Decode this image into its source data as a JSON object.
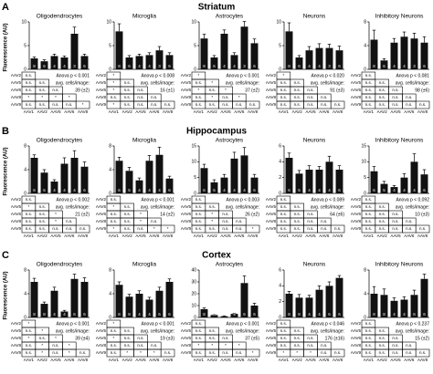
{
  "sections": [
    {
      "letter": "A",
      "title": "Striatum",
      "ylabel": "Fluorescence (AU)"
    },
    {
      "letter": "B",
      "title": "Hippocampus",
      "ylabel": "Fluorescence (AU)"
    },
    {
      "letter": "C",
      "title": "Cortex",
      "ylabel": "Fluorescence (AU)"
    }
  ],
  "chart_data": [
    {
      "type": "bar",
      "title": "Oligodendrocytes",
      "values": [
        2.3,
        1.7,
        2.8,
        2.5,
        7.5,
        2.8
      ],
      "errors": [
        0.3,
        0.3,
        0.4,
        0.3,
        1.4,
        0.4
      ],
      "n": [
        8,
        6,
        4,
        4,
        3,
        6
      ],
      "ylim": [
        0,
        10
      ],
      "yticks": [
        0,
        5,
        10
      ],
      "color": "#111111",
      "sig_rows": [
        "AAV2",
        "AAV5",
        "AAV6",
        "AAV8",
        "AAV9"
      ],
      "sig_cols": [
        "AAV1",
        "AAV2",
        "AAV5",
        "AAV6",
        "AAV8"
      ],
      "sig": [
        [
          "n.s."
        ],
        [
          "n.s.",
          "n.s."
        ],
        [
          "n.s.",
          "n.s.",
          "n.s."
        ],
        [
          "*",
          "*",
          "*",
          "*"
        ],
        [
          "n.s.",
          "n.s.",
          "n.s.",
          "n.s.",
          "*"
        ]
      ],
      "stats": [
        "Anova p < 0.001",
        "avg. cells/image:",
        "39 (±2)"
      ]
    },
    {
      "type": "bar",
      "title": "Microglia",
      "values": [
        8,
        2.5,
        2.8,
        3,
        4,
        3
      ],
      "errors": [
        1.6,
        0.4,
        0.4,
        0.5,
        0.8,
        0.5
      ],
      "n": [
        8,
        6,
        4,
        4,
        3,
        6
      ],
      "ylim": [
        0,
        10
      ],
      "yticks": [
        0,
        5,
        10
      ],
      "color": "#111111",
      "sig_rows": [
        "AAV2",
        "AAV5",
        "AAV6",
        "AAV8",
        "AAV9"
      ],
      "sig_cols": [
        "AAV1",
        "AAV2",
        "AAV5",
        "AAV6",
        "AAV8"
      ],
      "sig": [
        [
          "*"
        ],
        [
          "*",
          "n.s."
        ],
        [
          "*",
          "n.s.",
          "n.s."
        ],
        [
          "n.s.",
          "n.s.",
          "n.s.",
          "n.s."
        ],
        [
          "*",
          "n.s.",
          "n.s.",
          "n.s.",
          "n.s."
        ]
      ],
      "stats": [
        "Anova p < 0.008",
        "avg. cells/image:",
        "16 (±1)"
      ]
    },
    {
      "type": "bar",
      "title": "Astrocytes",
      "values": [
        6.5,
        2.5,
        7.5,
        3,
        9,
        5.5
      ],
      "errors": [
        0.9,
        0.4,
        0.8,
        0.5,
        1.1,
        0.9
      ],
      "n": [
        8,
        6,
        4,
        4,
        3,
        6
      ],
      "ylim": [
        0,
        10
      ],
      "yticks": [
        0,
        5,
        10
      ],
      "color": "#111111",
      "sig_rows": [
        "AAV2",
        "AAV5",
        "AAV6",
        "AAV8",
        "AAV9"
      ],
      "sig_cols": [
        "AAV1",
        "AAV2",
        "AAV5",
        "AAV6",
        "AAV8"
      ],
      "sig": [
        [
          "*"
        ],
        [
          "n.s.",
          "*"
        ],
        [
          "*",
          "n.s.",
          "*"
        ],
        [
          "n.s.",
          "*",
          "n.s.",
          "*"
        ],
        [
          "n.s.",
          "n.s.",
          "n.s.",
          "n.s.",
          "n.s."
        ]
      ],
      "stats": [
        "Anova p < 0.001",
        "avg. cells/image:",
        "37 (±2)"
      ]
    },
    {
      "type": "bar",
      "title": "Neurons",
      "values": [
        8,
        2.5,
        4,
        4.5,
        4.5,
        4
      ],
      "errors": [
        1.8,
        0.4,
        0.8,
        0.9,
        0.8,
        0.9
      ],
      "n": [
        8,
        6,
        4,
        4,
        3,
        6
      ],
      "ylim": [
        0,
        10
      ],
      "yticks": [
        0,
        5,
        10
      ],
      "color": "#111111",
      "sig_rows": [
        "AAV2",
        "AAV5",
        "AAV6",
        "AAV8",
        "AAV9"
      ],
      "sig_cols": [
        "AAV1",
        "AAV2",
        "AAV5",
        "AAV6",
        "AAV8"
      ],
      "sig": [
        [
          "*"
        ],
        [
          "n.s.",
          "n.s."
        ],
        [
          "n.s.",
          "n.s.",
          "n.s."
        ],
        [
          "n.s.",
          "n.s.",
          "n.s.",
          "n.s."
        ],
        [
          "n.s.",
          "n.s.",
          "n.s.",
          "n.s.",
          "n.s."
        ]
      ],
      "stats": [
        "Anova p < 0.020",
        "avg. cells/image:",
        "91 (±3)"
      ]
    },
    {
      "type": "bar",
      "title": "Inhibitory Neurons",
      "values": [
        5,
        1.5,
        4.5,
        5.5,
        5.2,
        4.5
      ],
      "errors": [
        1.6,
        0.3,
        0.7,
        0.8,
        0.9,
        1
      ],
      "n": [
        8,
        6,
        4,
        4,
        3,
        6
      ],
      "ylim": [
        0,
        8
      ],
      "yticks": [
        0,
        4,
        8
      ],
      "color": "#111111",
      "sig_rows": [
        "AAV2",
        "AAV5",
        "AAV6",
        "AAV8",
        "AAV9"
      ],
      "sig_cols": [
        "AAV1",
        "AAV2",
        "AAV5",
        "AAV6",
        "AAV8"
      ],
      "sig": [
        [
          "n.s."
        ],
        [
          "n.s.",
          "n.s."
        ],
        [
          "n.s.",
          "n.s.",
          "n.s."
        ],
        [
          "n.s.",
          "n.s.",
          "n.s.",
          "n.s."
        ],
        [
          "n.s.",
          "n.s.",
          "n.s.",
          "n.s.",
          "n.s."
        ]
      ],
      "stats": [
        "Anova p < 0.081",
        "avg. cells/image:",
        "98 (±6)"
      ]
    },
    {
      "type": "bar",
      "title": "Oligodendrocytes",
      "values": [
        6,
        3.5,
        2,
        5,
        6,
        4.5
      ],
      "errors": [
        0.5,
        0.5,
        0.3,
        1,
        1.2,
        0.8
      ],
      "n": [
        6,
        5,
        4,
        4,
        4,
        6
      ],
      "ylim": [
        0,
        8
      ],
      "yticks": [
        0,
        4,
        8
      ],
      "color": "#111111",
      "sig_rows": [
        "AAV2",
        "AAV5",
        "AAV6",
        "AAV8",
        "AAV9"
      ],
      "sig_cols": [
        "AAV1",
        "AAV2",
        "AAV5",
        "AAV6",
        "AAV8"
      ],
      "sig": [
        [
          "n.s."
        ],
        [
          "*",
          "n.s."
        ],
        [
          "n.s.",
          "n.s.",
          "*"
        ],
        [
          "n.s.",
          "n.s.",
          "*",
          "n.s."
        ],
        [
          "n.s.",
          "n.s.",
          "n.s.",
          "n.s.",
          "n.s."
        ]
      ],
      "stats": [
        "Anova p < 0.002",
        "avg. cells/image:",
        "21 (±2)"
      ]
    },
    {
      "type": "bar",
      "title": "Microglia",
      "values": [
        5.5,
        3.8,
        2.2,
        5.5,
        6.5,
        2.5
      ],
      "errors": [
        0.6,
        0.6,
        0.4,
        0.9,
        1.3,
        0.4
      ],
      "n": [
        6,
        5,
        4,
        4,
        4,
        6
      ],
      "ylim": [
        0,
        8
      ],
      "yticks": [
        0,
        4,
        8
      ],
      "color": "#111111",
      "sig_rows": [
        "AAV2",
        "AAV5",
        "AAV6",
        "AAV8",
        "AAV9"
      ],
      "sig_cols": [
        "AAV1",
        "AAV2",
        "AAV5",
        "AAV6",
        "AAV8"
      ],
      "sig": [
        [
          "n.s."
        ],
        [
          "*",
          "n.s."
        ],
        [
          "n.s.",
          "n.s.",
          "*"
        ],
        [
          "n.s.",
          "n.s.",
          "*",
          "n.s."
        ],
        [
          "*",
          "n.s.",
          "n.s.",
          "*",
          "*"
        ]
      ],
      "stats": [
        "Anova p < 0.001",
        "avg. cells/image:",
        "14 (±2)"
      ]
    },
    {
      "type": "bar",
      "title": "Astrocytes",
      "values": [
        8,
        3.5,
        5,
        11,
        12,
        5
      ],
      "errors": [
        1.2,
        0.8,
        1,
        2,
        2.5,
        1
      ],
      "n": [
        6,
        5,
        4,
        4,
        4,
        6
      ],
      "ylim": [
        0,
        15
      ],
      "yticks": [
        0,
        5,
        10,
        15
      ],
      "color": "#111111",
      "sig_rows": [
        "AAV2",
        "AAV5",
        "AAV6",
        "AAV8",
        "AAV9"
      ],
      "sig_cols": [
        "AAV1",
        "AAV2",
        "AAV5",
        "AAV6",
        "AAV8"
      ],
      "sig": [
        [
          "n.s."
        ],
        [
          "n.s.",
          "n.s."
        ],
        [
          "n.s.",
          "*",
          "n.s."
        ],
        [
          "n.s.",
          "*",
          "n.s.",
          "n.s."
        ],
        [
          "n.s.",
          "n.s.",
          "n.s.",
          "n.s.",
          "*"
        ]
      ],
      "stats": [
        "Anova p < 0.003",
        "avg. cells/image:",
        "26 (±2)"
      ]
    },
    {
      "type": "bar",
      "title": "Neurons",
      "values": [
        4.5,
        2.5,
        3,
        3,
        4,
        3
      ],
      "errors": [
        0.6,
        0.4,
        0.5,
        0.4,
        0.7,
        0.5
      ],
      "n": [
        6,
        5,
        4,
        4,
        4,
        6
      ],
      "ylim": [
        0,
        6
      ],
      "yticks": [
        0,
        2,
        4,
        6
      ],
      "color": "#111111",
      "sig_rows": [
        "AAV2",
        "AAV5",
        "AAV6",
        "AAV8",
        "AAV9"
      ],
      "sig_cols": [
        "AAV1",
        "AAV2",
        "AAV5",
        "AAV6",
        "AAV8"
      ],
      "sig": [
        [
          "n.s."
        ],
        [
          "n.s.",
          "n.s."
        ],
        [
          "n.s.",
          "n.s.",
          "n.s."
        ],
        [
          "n.s.",
          "n.s.",
          "n.s.",
          "n.s."
        ],
        [
          "n.s.",
          "n.s.",
          "n.s.",
          "n.s.",
          "n.s."
        ]
      ],
      "stats": [
        "Anova p < 0.089",
        "avg. cells/image:",
        "64 (±6)"
      ]
    },
    {
      "type": "bar",
      "title": "Inhibitory Neurons",
      "values": [
        7,
        3,
        2,
        5,
        10,
        6
      ],
      "errors": [
        1.5,
        0.8,
        0.5,
        1.2,
        2.5,
        1.5
      ],
      "n": [
        6,
        5,
        4,
        4,
        4,
        6
      ],
      "ylim": [
        0,
        15
      ],
      "yticks": [
        0,
        5,
        10,
        15
      ],
      "color": "#111111",
      "sig_rows": [
        "AAV2",
        "AAV5",
        "AAV6",
        "AAV8",
        "AAV9"
      ],
      "sig_cols": [
        "AAV1",
        "AAV2",
        "AAV5",
        "AAV6",
        "AAV8"
      ],
      "sig": [
        [
          "n.s."
        ],
        [
          "n.s.",
          "n.s."
        ],
        [
          "n.s.",
          "n.s.",
          "n.s."
        ],
        [
          "n.s.",
          "n.s.",
          "n.s.",
          "n.s."
        ],
        [
          "n.s.",
          "n.s.",
          "n.s.",
          "n.s.",
          "n.s."
        ]
      ],
      "stats": [
        "Anova p < 0.092",
        "avg. cells/image:",
        "10 (±3)"
      ]
    },
    {
      "type": "bar",
      "title": "Oligodendrocytes",
      "values": [
        6,
        2.3,
        4.5,
        1,
        6.5,
        6
      ],
      "errors": [
        0.6,
        0.3,
        0.6,
        0.2,
        0.8,
        0.7
      ],
      "n": [
        8,
        8,
        4,
        4,
        6,
        6
      ],
      "ylim": [
        0,
        8
      ],
      "yticks": [
        0,
        4,
        8
      ],
      "color": "#111111",
      "sig_rows": [
        "AAV2",
        "AAV5",
        "AAV6",
        "AAV8",
        "AAV9"
      ],
      "sig_cols": [
        "AAV1",
        "AAV2",
        "AAV5",
        "AAV6",
        "AAV8"
      ],
      "sig": [
        [
          "*"
        ],
        [
          "n.s.",
          "*"
        ],
        [
          "*",
          "n.s.",
          "*"
        ],
        [
          "n.s.",
          "*",
          "n.s.",
          "*"
        ],
        [
          "n.s.",
          "*",
          "n.s.",
          "*",
          "n.s."
        ]
      ],
      "stats": [
        "Anova p < 0.001",
        "avg. cells/image:",
        "39 (±4)"
      ]
    },
    {
      "type": "bar",
      "title": "Microglia",
      "values": [
        5.5,
        3.5,
        4,
        3,
        4.5,
        6
      ],
      "errors": [
        0.5,
        0.4,
        0.5,
        0.4,
        0.6,
        0.5
      ],
      "n": [
        8,
        8,
        4,
        4,
        6,
        6
      ],
      "ylim": [
        0,
        8
      ],
      "yticks": [
        0,
        4,
        8
      ],
      "color": "#111111",
      "sig_rows": [
        "AAV2",
        "AAV5",
        "AAV6",
        "AAV8",
        "AAV9"
      ],
      "sig_cols": [
        "AAV1",
        "AAV2",
        "AAV5",
        "AAV6",
        "AAV8"
      ],
      "sig": [
        [
          "*"
        ],
        [
          "n.s.",
          "n.s."
        ],
        [
          "*",
          "n.s.",
          "n.s."
        ],
        [
          "n.s.",
          "n.s.",
          "n.s.",
          "n.s."
        ],
        [
          "n.s.",
          "*",
          "*",
          "*",
          "n.s."
        ]
      ],
      "stats": [
        "Anova p < 0.001",
        "avg. cells/image:",
        "19 (±3)"
      ]
    },
    {
      "type": "bar",
      "title": "Astrocytes",
      "values": [
        7,
        2,
        1,
        3,
        29,
        10
      ],
      "errors": [
        1,
        0.4,
        0.3,
        0.6,
        6,
        2
      ],
      "n": [
        8,
        8,
        4,
        4,
        6,
        6
      ],
      "ylim": [
        0,
        40
      ],
      "yticks": [
        0,
        10,
        20,
        30,
        40
      ],
      "color": "#111111",
      "sig_rows": [
        "AAV2",
        "AAV5",
        "AAV6",
        "AAV8",
        "AAV9"
      ],
      "sig_cols": [
        "AAV1",
        "AAV2",
        "AAV5",
        "AAV6",
        "AAV8"
      ],
      "sig": [
        [
          "n.s."
        ],
        [
          "n.s.",
          "n.s."
        ],
        [
          "n.s.",
          "n.s.",
          "n.s."
        ],
        [
          "*",
          "*",
          "*",
          "*"
        ],
        [
          "n.s.",
          "n.s.",
          "n.s.",
          "n.s.",
          "*"
        ]
      ],
      "stats": [
        "Anova p < 0.001",
        "avg. cells/image:",
        "37 (±5)"
      ]
    },
    {
      "type": "bar",
      "title": "Neurons",
      "values": [
        3,
        2.5,
        2.5,
        3.5,
        4,
        5
      ],
      "errors": [
        0.3,
        0.4,
        0.3,
        0.5,
        0.5,
        0.3
      ],
      "n": [
        8,
        8,
        4,
        4,
        6,
        6
      ],
      "ylim": [
        0,
        6
      ],
      "yticks": [
        0,
        2,
        4,
        6
      ],
      "color": "#111111",
      "sig_rows": [
        "AAV2",
        "AAV5",
        "AAV6",
        "AAV8",
        "AAV9"
      ],
      "sig_cols": [
        "AAV1",
        "AAV2",
        "AAV5",
        "AAV6",
        "AAV8"
      ],
      "sig": [
        [
          "n.s."
        ],
        [
          "n.s.",
          "n.s."
        ],
        [
          "n.s.",
          "n.s.",
          "n.s."
        ],
        [
          "n.s.",
          "n.s.",
          "n.s.",
          "n.s."
        ],
        [
          "*",
          "*",
          "*",
          "n.s.",
          "n.s."
        ]
      ],
      "stats": [
        "Anova p < 0.046",
        "avg. cells/image:",
        "176 (±16)"
      ]
    },
    {
      "type": "bar",
      "title": "Inhibitory Neurons",
      "values": [
        4,
        3.8,
        2.8,
        3,
        3.8,
        6.5
      ],
      "errors": [
        1.2,
        1,
        0.5,
        0.5,
        0.8,
        0.8
      ],
      "n": [
        8,
        8,
        4,
        4,
        6,
        6
      ],
      "ylim": [
        0,
        8
      ],
      "yticks": [
        0,
        4,
        8
      ],
      "color": "#111111",
      "sig_rows": [
        "AAV2",
        "AAV5",
        "AAV6",
        "AAV8",
        "AAV9"
      ],
      "sig_cols": [
        "AAV1",
        "AAV2",
        "AAV5",
        "AAV6",
        "AAV8"
      ],
      "sig": [
        [
          "n.s."
        ],
        [
          "n.s.",
          "n.s."
        ],
        [
          "n.s.",
          "n.s.",
          "n.s."
        ],
        [
          "n.s.",
          "n.s.",
          "n.s.",
          "n.s."
        ],
        [
          "n.s.",
          "n.s.",
          "n.s.",
          "n.s.",
          "n.s."
        ]
      ],
      "stats": [
        "Anova p < 0.237",
        "avg. cells/image:",
        "15 (±2)"
      ]
    }
  ]
}
